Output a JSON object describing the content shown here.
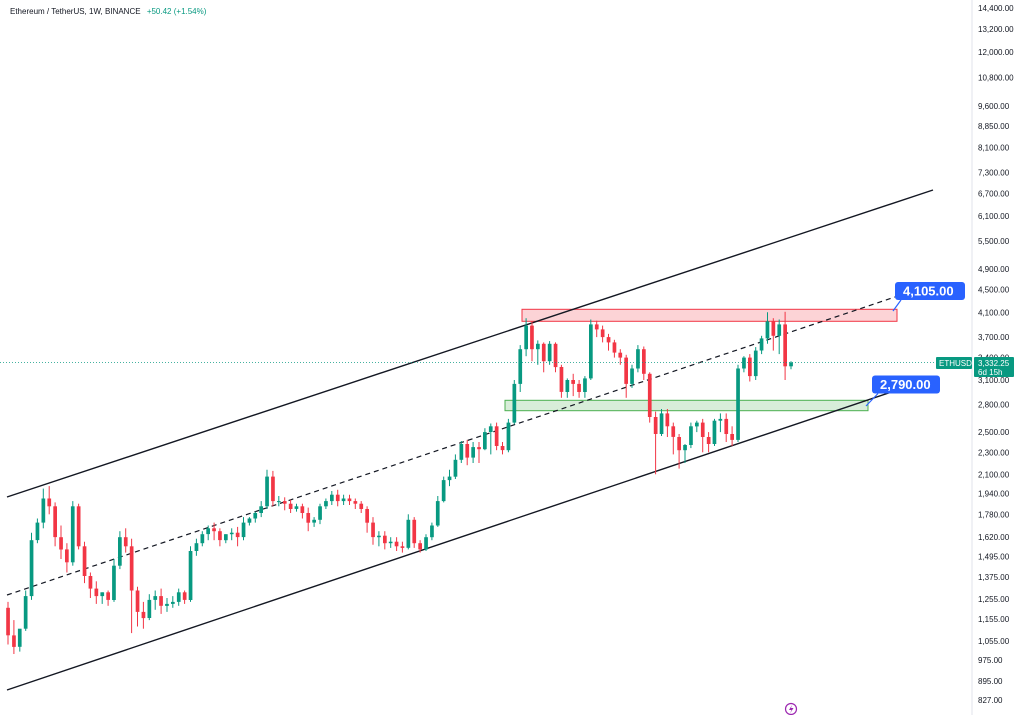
{
  "header": {
    "title": "Ethereum / TetherUS, 1W, BINANCE",
    "change": "+50.42 (+1.54%)"
  },
  "price_tag": {
    "symbol": "ETHUSDT",
    "price": "3,332.25",
    "countdown": "6d 15h"
  },
  "chart_data": {
    "type": "candlestick",
    "scale": "log",
    "ylim": [
      800,
      14400
    ],
    "yaxis_ticks": [
      {
        "value": 14400,
        "label": "14,400.00"
      },
      {
        "value": 13200,
        "label": "13,200.00"
      },
      {
        "value": 12000,
        "label": "12,000.00"
      },
      {
        "value": 10800,
        "label": "10,800.00"
      },
      {
        "value": 9600,
        "label": "9,600.00"
      },
      {
        "value": 8850,
        "label": "8,850.00"
      },
      {
        "value": 8100,
        "label": "8,100.00"
      },
      {
        "value": 7300,
        "label": "7,300.00"
      },
      {
        "value": 6700,
        "label": "6,700.00"
      },
      {
        "value": 6100,
        "label": "6,100.00"
      },
      {
        "value": 5500,
        "label": "5,500.00"
      },
      {
        "value": 4900,
        "label": "4,900.00"
      },
      {
        "value": 4500,
        "label": "4,500.00"
      },
      {
        "value": 4100,
        "label": "4,100.00"
      },
      {
        "value": 3700,
        "label": "3,700.00"
      },
      {
        "value": 3400,
        "label": "3,400.00"
      },
      {
        "value": 3100,
        "label": "3,100.00"
      },
      {
        "value": 2800,
        "label": "2,800.00"
      },
      {
        "value": 2500,
        "label": "2,500.00"
      },
      {
        "value": 2300,
        "label": "2,300.00"
      },
      {
        "value": 2100,
        "label": "2,100.00"
      },
      {
        "value": 1940,
        "label": "1,940.00"
      },
      {
        "value": 1780,
        "label": "1,780.00"
      },
      {
        "value": 1620,
        "label": "1,620.00"
      },
      {
        "value": 1495,
        "label": "1,495.00"
      },
      {
        "value": 1375,
        "label": "1,375.00"
      },
      {
        "value": 1255,
        "label": "1,255.00"
      },
      {
        "value": 1155,
        "label": "1,155.00"
      },
      {
        "value": 1055,
        "label": "1,055.00"
      },
      {
        "value": 975,
        "label": "975.00"
      },
      {
        "value": 895,
        "label": "895.00"
      },
      {
        "value": 827,
        "label": "827.00"
      }
    ],
    "current_price": 3332.25,
    "candles": [
      {
        "o": 1210,
        "h": 1240,
        "c": 1080,
        "l": 1040
      },
      {
        "o": 1080,
        "h": 1150,
        "c": 1030,
        "l": 1000
      },
      {
        "o": 1030,
        "h": 1100,
        "c": 1110,
        "l": 1010
      },
      {
        "o": 1110,
        "h": 1300,
        "c": 1270,
        "l": 1100
      },
      {
        "o": 1270,
        "h": 1650,
        "c": 1600,
        "l": 1250
      },
      {
        "o": 1600,
        "h": 1750,
        "c": 1720,
        "l": 1580
      },
      {
        "o": 1720,
        "h": 1980,
        "c": 1900,
        "l": 1680
      },
      {
        "o": 1900,
        "h": 2000,
        "c": 1840,
        "l": 1780
      },
      {
        "o": 1840,
        "h": 1870,
        "c": 1620,
        "l": 1560
      },
      {
        "o": 1620,
        "h": 1700,
        "c": 1540,
        "l": 1480
      },
      {
        "o": 1540,
        "h": 1580,
        "c": 1460,
        "l": 1400
      },
      {
        "o": 1460,
        "h": 1880,
        "c": 1840,
        "l": 1440
      },
      {
        "o": 1840,
        "h": 1860,
        "c": 1560,
        "l": 1540
      },
      {
        "o": 1560,
        "h": 1590,
        "c": 1380,
        "l": 1340
      },
      {
        "o": 1380,
        "h": 1400,
        "c": 1310,
        "l": 1260
      },
      {
        "o": 1310,
        "h": 1350,
        "c": 1270,
        "l": 1230
      },
      {
        "o": 1270,
        "h": 1290,
        "c": 1290,
        "l": 1230
      },
      {
        "o": 1290,
        "h": 1300,
        "c": 1250,
        "l": 1220
      },
      {
        "o": 1250,
        "h": 1480,
        "c": 1440,
        "l": 1240
      },
      {
        "o": 1440,
        "h": 1660,
        "c": 1620,
        "l": 1420
      },
      {
        "o": 1620,
        "h": 1680,
        "c": 1560,
        "l": 1520
      },
      {
        "o": 1560,
        "h": 1610,
        "c": 1300,
        "l": 1090
      },
      {
        "o": 1300,
        "h": 1320,
        "c": 1190,
        "l": 1120
      },
      {
        "o": 1190,
        "h": 1240,
        "c": 1160,
        "l": 1110
      },
      {
        "o": 1160,
        "h": 1280,
        "c": 1250,
        "l": 1150
      },
      {
        "o": 1250,
        "h": 1300,
        "c": 1270,
        "l": 1200
      },
      {
        "o": 1270,
        "h": 1310,
        "c": 1220,
        "l": 1180
      },
      {
        "o": 1220,
        "h": 1260,
        "c": 1230,
        "l": 1190
      },
      {
        "o": 1230,
        "h": 1270,
        "c": 1240,
        "l": 1210
      },
      {
        "o": 1240,
        "h": 1310,
        "c": 1290,
        "l": 1220
      },
      {
        "o": 1290,
        "h": 1300,
        "c": 1250,
        "l": 1230
      },
      {
        "o": 1250,
        "h": 1560,
        "c": 1530,
        "l": 1240
      },
      {
        "o": 1530,
        "h": 1610,
        "c": 1580,
        "l": 1500
      },
      {
        "o": 1580,
        "h": 1660,
        "c": 1640,
        "l": 1560
      },
      {
        "o": 1640,
        "h": 1700,
        "c": 1680,
        "l": 1600
      },
      {
        "o": 1680,
        "h": 1720,
        "c": 1660,
        "l": 1600
      },
      {
        "o": 1660,
        "h": 1680,
        "c": 1600,
        "l": 1560
      },
      {
        "o": 1600,
        "h": 1640,
        "c": 1640,
        "l": 1580
      },
      {
        "o": 1640,
        "h": 1680,
        "c": 1650,
        "l": 1600
      },
      {
        "o": 1650,
        "h": 1690,
        "c": 1620,
        "l": 1560
      },
      {
        "o": 1620,
        "h": 1760,
        "c": 1720,
        "l": 1600
      },
      {
        "o": 1720,
        "h": 1760,
        "c": 1750,
        "l": 1700
      },
      {
        "o": 1750,
        "h": 1800,
        "c": 1790,
        "l": 1720
      },
      {
        "o": 1790,
        "h": 1880,
        "c": 1840,
        "l": 1760
      },
      {
        "o": 1840,
        "h": 2140,
        "c": 2080,
        "l": 1820
      },
      {
        "o": 2080,
        "h": 2130,
        "c": 1880,
        "l": 1840
      },
      {
        "o": 1880,
        "h": 1920,
        "c": 1880,
        "l": 1840
      },
      {
        "o": 1880,
        "h": 1910,
        "c": 1860,
        "l": 1810
      },
      {
        "o": 1860,
        "h": 1890,
        "c": 1820,
        "l": 1790
      },
      {
        "o": 1820,
        "h": 1860,
        "c": 1840,
        "l": 1800
      },
      {
        "o": 1840,
        "h": 1860,
        "c": 1790,
        "l": 1750
      },
      {
        "o": 1790,
        "h": 1830,
        "c": 1720,
        "l": 1660
      },
      {
        "o": 1720,
        "h": 1760,
        "c": 1740,
        "l": 1690
      },
      {
        "o": 1740,
        "h": 1860,
        "c": 1840,
        "l": 1710
      },
      {
        "o": 1840,
        "h": 1900,
        "c": 1880,
        "l": 1820
      },
      {
        "o": 1880,
        "h": 1960,
        "c": 1930,
        "l": 1850
      },
      {
        "o": 1930,
        "h": 1970,
        "c": 1880,
        "l": 1840
      },
      {
        "o": 1880,
        "h": 1930,
        "c": 1900,
        "l": 1850
      },
      {
        "o": 1900,
        "h": 1930,
        "c": 1880,
        "l": 1850
      },
      {
        "o": 1880,
        "h": 1900,
        "c": 1860,
        "l": 1820
      },
      {
        "o": 1860,
        "h": 1880,
        "c": 1820,
        "l": 1790
      },
      {
        "o": 1820,
        "h": 1840,
        "c": 1720,
        "l": 1650
      },
      {
        "o": 1720,
        "h": 1760,
        "c": 1620,
        "l": 1570
      },
      {
        "o": 1620,
        "h": 1660,
        "c": 1630,
        "l": 1560
      },
      {
        "o": 1630,
        "h": 1660,
        "c": 1580,
        "l": 1540
      },
      {
        "o": 1580,
        "h": 1620,
        "c": 1590,
        "l": 1550
      },
      {
        "o": 1590,
        "h": 1620,
        "c": 1560,
        "l": 1530
      },
      {
        "o": 1560,
        "h": 1590,
        "c": 1550,
        "l": 1520
      },
      {
        "o": 1550,
        "h": 1780,
        "c": 1740,
        "l": 1540
      },
      {
        "o": 1740,
        "h": 1760,
        "c": 1580,
        "l": 1550
      },
      {
        "o": 1580,
        "h": 1600,
        "c": 1540,
        "l": 1520
      },
      {
        "o": 1540,
        "h": 1640,
        "c": 1620,
        "l": 1530
      },
      {
        "o": 1620,
        "h": 1720,
        "c": 1700,
        "l": 1600
      },
      {
        "o": 1700,
        "h": 1920,
        "c": 1880,
        "l": 1690
      },
      {
        "o": 1880,
        "h": 2080,
        "c": 2050,
        "l": 1870
      },
      {
        "o": 2050,
        "h": 2140,
        "c": 2080,
        "l": 2000
      },
      {
        "o": 2080,
        "h": 2280,
        "c": 2230,
        "l": 2060
      },
      {
        "o": 2230,
        "h": 2410,
        "c": 2380,
        "l": 2200
      },
      {
        "o": 2380,
        "h": 2420,
        "c": 2250,
        "l": 2180
      },
      {
        "o": 2250,
        "h": 2400,
        "c": 2350,
        "l": 2200
      },
      {
        "o": 2350,
        "h": 2400,
        "c": 2330,
        "l": 2200
      },
      {
        "o": 2330,
        "h": 2540,
        "c": 2500,
        "l": 2320
      },
      {
        "o": 2500,
        "h": 2590,
        "c": 2560,
        "l": 2280
      },
      {
        "o": 2560,
        "h": 2600,
        "c": 2360,
        "l": 2320
      },
      {
        "o": 2360,
        "h": 2400,
        "c": 2320,
        "l": 2280
      },
      {
        "o": 2320,
        "h": 2640,
        "c": 2600,
        "l": 2300
      },
      {
        "o": 2600,
        "h": 3100,
        "c": 3050,
        "l": 2580
      },
      {
        "o": 3050,
        "h": 3580,
        "c": 3520,
        "l": 2950
      },
      {
        "o": 3520,
        "h": 4000,
        "c": 3880,
        "l": 3420
      },
      {
        "o": 3880,
        "h": 3950,
        "c": 3520,
        "l": 3350
      },
      {
        "o": 3520,
        "h": 3650,
        "c": 3600,
        "l": 3300
      },
      {
        "o": 3600,
        "h": 3620,
        "c": 3350,
        "l": 3200
      },
      {
        "o": 3350,
        "h": 3640,
        "c": 3600,
        "l": 3300
      },
      {
        "o": 3600,
        "h": 3620,
        "c": 3270,
        "l": 3200
      },
      {
        "o": 3270,
        "h": 3300,
        "c": 2950,
        "l": 2880
      },
      {
        "o": 2950,
        "h": 3120,
        "c": 3100,
        "l": 2880
      },
      {
        "o": 3100,
        "h": 3180,
        "c": 3050,
        "l": 2900
      },
      {
        "o": 3050,
        "h": 3100,
        "c": 2950,
        "l": 2880
      },
      {
        "o": 2950,
        "h": 3150,
        "c": 3120,
        "l": 2880
      },
      {
        "o": 3120,
        "h": 3980,
        "c": 3900,
        "l": 3100
      },
      {
        "o": 3900,
        "h": 3960,
        "c": 3820,
        "l": 3700
      },
      {
        "o": 3820,
        "h": 3880,
        "c": 3700,
        "l": 3620
      },
      {
        "o": 3700,
        "h": 3750,
        "c": 3620,
        "l": 3500
      },
      {
        "o": 3620,
        "h": 3660,
        "c": 3470,
        "l": 3400
      },
      {
        "o": 3470,
        "h": 3520,
        "c": 3400,
        "l": 3300
      },
      {
        "o": 3400,
        "h": 3440,
        "c": 3050,
        "l": 2880
      },
      {
        "o": 3050,
        "h": 3300,
        "c": 3250,
        "l": 3000
      },
      {
        "o": 3250,
        "h": 3580,
        "c": 3520,
        "l": 3200
      },
      {
        "o": 3520,
        "h": 3560,
        "c": 3180,
        "l": 3100
      },
      {
        "o": 3180,
        "h": 3200,
        "c": 2660,
        "l": 2600
      },
      {
        "o": 2660,
        "h": 2720,
        "c": 2480,
        "l": 2100
      },
      {
        "o": 2480,
        "h": 2750,
        "c": 2700,
        "l": 2460
      },
      {
        "o": 2700,
        "h": 2750,
        "c": 2560,
        "l": 2450
      },
      {
        "o": 2560,
        "h": 2600,
        "c": 2450,
        "l": 2280
      },
      {
        "o": 2450,
        "h": 2480,
        "c": 2320,
        "l": 2150
      },
      {
        "o": 2320,
        "h": 2380,
        "c": 2370,
        "l": 2200
      },
      {
        "o": 2370,
        "h": 2600,
        "c": 2560,
        "l": 2340
      },
      {
        "o": 2560,
        "h": 2620,
        "c": 2600,
        "l": 2500
      },
      {
        "o": 2600,
        "h": 2640,
        "c": 2450,
        "l": 2300
      },
      {
        "o": 2450,
        "h": 2500,
        "c": 2380,
        "l": 2300
      },
      {
        "o": 2380,
        "h": 2640,
        "c": 2620,
        "l": 2360
      },
      {
        "o": 2620,
        "h": 2700,
        "c": 2640,
        "l": 2500
      },
      {
        "o": 2640,
        "h": 2700,
        "c": 2480,
        "l": 2400
      },
      {
        "o": 2480,
        "h": 2560,
        "c": 2420,
        "l": 2360
      },
      {
        "o": 2420,
        "h": 3300,
        "c": 3250,
        "l": 2400
      },
      {
        "o": 3250,
        "h": 3420,
        "c": 3400,
        "l": 3200
      },
      {
        "o": 3400,
        "h": 3450,
        "c": 3150,
        "l": 3080
      },
      {
        "o": 3150,
        "h": 3550,
        "c": 3500,
        "l": 3100
      },
      {
        "o": 3500,
        "h": 3720,
        "c": 3680,
        "l": 3450
      },
      {
        "o": 3680,
        "h": 4100,
        "c": 3950,
        "l": 3600
      },
      {
        "o": 3950,
        "h": 4000,
        "c": 3720,
        "l": 3500
      },
      {
        "o": 3720,
        "h": 3980,
        "c": 3900,
        "l": 3450
      },
      {
        "o": 3900,
        "h": 4108,
        "c": 3280,
        "l": 3100
      },
      {
        "o": 3280,
        "h": 3350,
        "c": 3332,
        "l": 3240
      }
    ],
    "zones": [
      {
        "name": "resistance",
        "low": 3950,
        "high": 4150,
        "color": "#f23645"
      },
      {
        "name": "support",
        "low": 2730,
        "high": 2850,
        "color": "#4caf50"
      }
    ],
    "annotations": [
      {
        "label": "4,105.00",
        "value": 4105
      },
      {
        "label": "2,790.00",
        "value": 2790
      }
    ],
    "colors": {
      "up": "#089981",
      "down": "#f23645",
      "callout": "#2962ff",
      "line": "#131722",
      "price_line": "#089981"
    }
  }
}
